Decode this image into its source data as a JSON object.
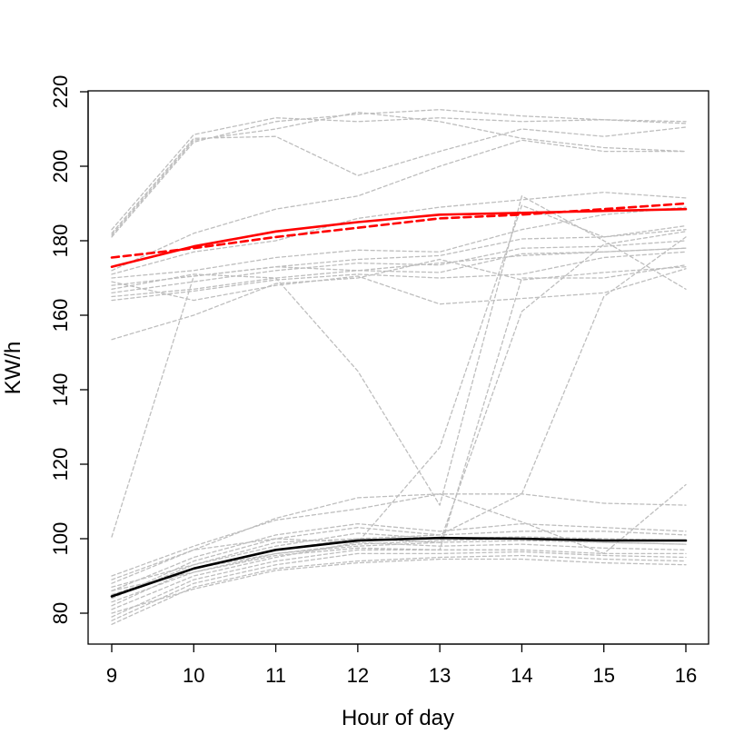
{
  "chart_data": {
    "type": "line",
    "title": "",
    "xlabel": "Hour of day",
    "ylabel": "KW/h",
    "xlim": [
      9,
      16
    ],
    "ylim": [
      75,
      218
    ],
    "x_ticks": [
      9,
      10,
      11,
      12,
      13,
      14,
      15,
      16
    ],
    "y_ticks": [
      80,
      100,
      120,
      140,
      160,
      180,
      200,
      220
    ],
    "x": [
      9,
      10,
      11,
      12,
      13,
      14,
      15,
      16
    ],
    "grid": false,
    "legend": "none",
    "colors": {
      "background_series": "#bebebe",
      "high_mean": "#ff0000",
      "low_mean": "#000000"
    },
    "series": [
      {
        "values": [
          181,
          206.5,
          212,
          214,
          215.2,
          213.5,
          212.5,
          211.5
        ],
        "group": "background"
      },
      {
        "values": [
          182,
          207.5,
          208,
          197.5,
          204,
          210,
          208,
          210.5
        ],
        "group": "background"
      },
      {
        "values": [
          183,
          208.5,
          213,
          212,
          213,
          212,
          212.5,
          212
        ],
        "group": "background"
      },
      {
        "values": [
          181.5,
          207,
          210,
          214.5,
          212,
          207.5,
          205,
          204
        ],
        "group": "background"
      },
      {
        "values": [
          172,
          182,
          188.5,
          192,
          200,
          207,
          204,
          204
        ],
        "group": "background"
      },
      {
        "values": [
          171,
          177,
          180,
          186,
          189,
          191,
          193,
          191.5
        ],
        "group": "background"
      },
      {
        "values": [
          170,
          172,
          175.5,
          177.5,
          177,
          183,
          187,
          189
        ],
        "group": "background"
      },
      {
        "values": [
          168,
          170.5,
          173,
          175,
          176,
          180.5,
          181,
          184
        ],
        "group": "background"
      },
      {
        "values": [
          166,
          169,
          172,
          174,
          173.5,
          178,
          178.5,
          180
        ],
        "group": "background"
      },
      {
        "values": [
          165,
          167,
          170,
          172,
          171.5,
          176.5,
          177,
          178
        ],
        "group": "background"
      },
      {
        "values": [
          164,
          166.5,
          169.5,
          171,
          170,
          171,
          175.5,
          177
        ],
        "group": "background"
      },
      {
        "values": [
          169,
          164,
          168,
          170.5,
          163,
          164.5,
          166,
          172.5
        ],
        "group": "background"
      },
      {
        "values": [
          153.5,
          160,
          168.5,
          170,
          175,
          169.5,
          171.5,
          173
        ],
        "group": "background"
      },
      {
        "values": [
          167,
          171,
          170,
          145,
          109,
          192,
          180,
          167
        ],
        "group": "background"
      },
      {
        "values": [
          100.5,
          170.5,
          173,
          172,
          174,
          176,
          177,
          178
        ],
        "group": "background"
      },
      {
        "values": [
          89,
          97,
          100,
          99,
          124.5,
          189.5,
          181,
          183
        ],
        "group": "background"
      },
      {
        "values": [
          85,
          92,
          96,
          98,
          99,
          161,
          179,
          182.5
        ],
        "group": "background"
      },
      {
        "values": [
          86,
          91,
          95.5,
          97.5,
          97,
          170,
          170,
          173.5
        ],
        "group": "background"
      },
      {
        "values": [
          87,
          93,
          99,
          100,
          101,
          112,
          165,
          181
        ],
        "group": "background"
      },
      {
        "values": [
          90,
          98,
          105,
          108,
          112,
          112,
          109.5,
          109
        ],
        "group": "background"
      },
      {
        "values": [
          88,
          97,
          105.5,
          111,
          112,
          104.5,
          96,
          114.5
        ],
        "group": "background"
      },
      {
        "values": [
          86,
          95,
          101,
          104,
          102,
          104,
          103,
          102
        ],
        "group": "background"
      },
      {
        "values": [
          84,
          94,
          100,
          103,
          101,
          102,
          102,
          101
        ],
        "group": "background"
      },
      {
        "values": [
          84,
          93,
          98,
          101.5,
          100,
          100.5,
          100,
          99.5
        ],
        "group": "background"
      },
      {
        "values": [
          82,
          92,
          97,
          100,
          99,
          99.5,
          99,
          98.5
        ],
        "group": "background"
      },
      {
        "values": [
          81,
          90,
          95,
          99,
          98,
          98.5,
          97.5,
          97
        ],
        "group": "background"
      },
      {
        "values": [
          79,
          89,
          94,
          97,
          97,
          97,
          96,
          96
        ],
        "group": "background"
      },
      {
        "values": [
          78,
          88,
          93,
          96,
          96,
          96.5,
          95.5,
          95
        ],
        "group": "background"
      },
      {
        "values": [
          77,
          87,
          92,
          94,
          95,
          95.5,
          94.5,
          94
        ],
        "group": "background"
      },
      {
        "values": [
          80,
          86.5,
          91.5,
          93.5,
          94.5,
          94.5,
          93.5,
          93
        ],
        "group": "background"
      },
      {
        "values": [
          83,
          91,
          96,
          98.5,
          99.5,
          100,
          99,
          98.5
        ],
        "group": "background"
      },
      {
        "values": [
          173,
          178.5,
          182.5,
          185,
          187,
          187.5,
          188,
          188.5
        ],
        "group": "high",
        "dash": "solid"
      },
      {
        "values": [
          175.5,
          178,
          181,
          183.5,
          186,
          187,
          188.5,
          190
        ],
        "group": "high",
        "dash": "dashed"
      },
      {
        "values": [
          84.5,
          92,
          97,
          99.5,
          100.2,
          100,
          99.5,
          99.5
        ],
        "group": "low",
        "dash": "solid"
      }
    ]
  }
}
